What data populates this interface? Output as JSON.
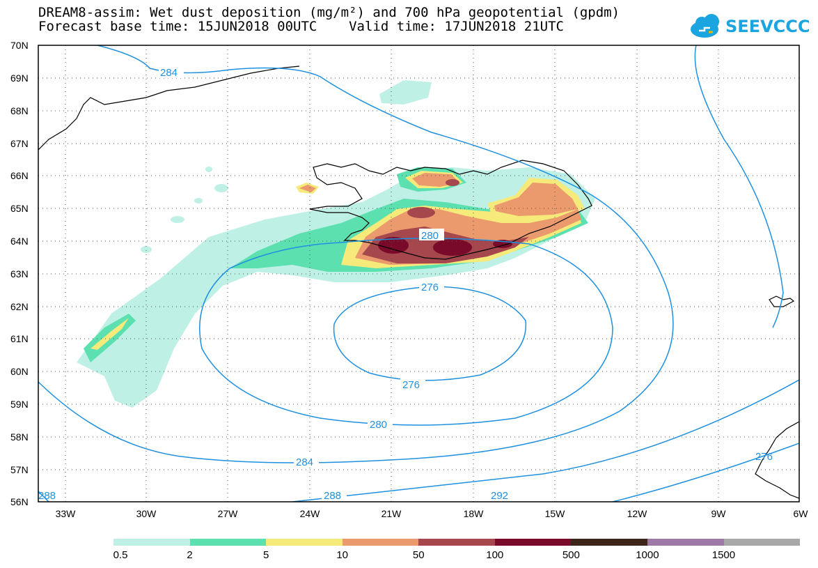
{
  "title": {
    "line1": "DREAM8-assim: Wet dust deposition (mg/m²) and 700 hPa geopotential (gpdm)",
    "line2": "Forecast base time: 15JUN2018 00UTC    Valid time: 17JUN2018 21UTC"
  },
  "logo": {
    "text": "SEEVCCC",
    "icon": "cloud-icon",
    "color": "#1aa4e0"
  },
  "map": {
    "lat_labels": [
      "70N",
      "69N",
      "68N",
      "67N",
      "66N",
      "65N",
      "64N",
      "63N",
      "62N",
      "61N",
      "60N",
      "59N",
      "58N",
      "57N",
      "56N"
    ],
    "lon_labels": [
      "33W",
      "30W",
      "27W",
      "24W",
      "21W",
      "18W",
      "15W",
      "12W",
      "9W",
      "6W"
    ],
    "contour_labels": [
      "284",
      "280",
      "276",
      "276",
      "280",
      "284",
      "288",
      "288",
      "292",
      "276"
    ],
    "contour_color": "#1e90e0",
    "coast_color": "#000000"
  },
  "legend": {
    "colors": [
      "#bff0e6",
      "#5ce0b0",
      "#f5ea7a",
      "#eb9a6e",
      "#a6474d",
      "#7a0a2a",
      "#3c2418",
      "#9c79a6",
      "#a8a8a8"
    ],
    "labels": [
      "0.5",
      "2",
      "5",
      "10",
      "50",
      "100",
      "500",
      "1000",
      "1500"
    ]
  }
}
